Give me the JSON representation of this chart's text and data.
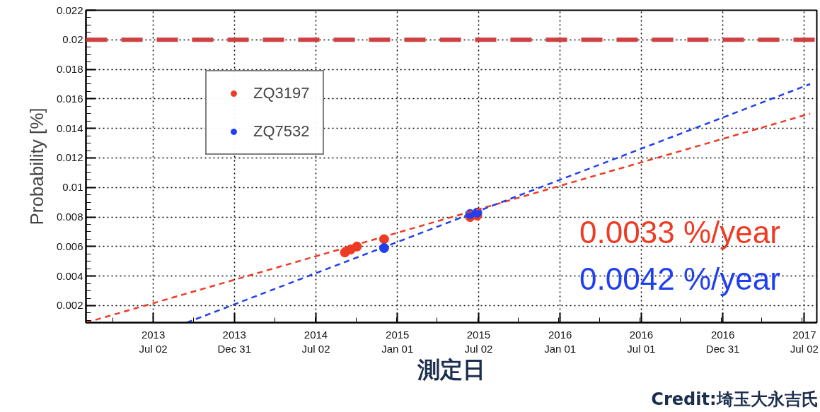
{
  "chart_data": {
    "type": "scatter",
    "xlabel": "測定日",
    "ylabel": "Probability [%]",
    "series": [
      {
        "name": "ZQ3197",
        "color": "#ee3b24",
        "marker": "circle",
        "x": [
          "2014-09-05",
          "2014-09-18",
          "2014-10-02",
          "2014-12-02",
          "2015-06-13",
          "2015-06-29"
        ],
        "values": [
          0.0056,
          0.0058,
          0.006,
          0.0065,
          0.008,
          0.0081
        ]
      },
      {
        "name": "ZQ7532",
        "color": "#2040f0",
        "marker": "circle",
        "x": [
          "2014-12-02",
          "2015-06-13",
          "2015-06-29"
        ],
        "values": [
          0.0059,
          0.0082,
          0.0083
        ]
      },
      {
        "color": "#ee3b24",
        "type": "line",
        "line_style": "dashed",
        "x": [
          "2013-02-01",
          "2017-07-15"
        ],
        "values": [
          0.00085,
          0.015
        ]
      },
      {
        "color": "#2040f0",
        "type": "line",
        "line_style": "dashed",
        "x": [
          "2013-09-15",
          "2017-07-15"
        ],
        "values": [
          0.00085,
          0.017
        ]
      }
    ],
    "xlim": [
      "2013-02-01",
      "2017-07-30"
    ],
    "xticks": [
      {
        "value": "2013-07-02",
        "label": "2013\nJul 02"
      },
      {
        "value": "2013-12-31",
        "label": "2013\nDec 31"
      },
      {
        "value": "2014-07-02",
        "label": "2014\nJul 02"
      },
      {
        "value": "2015-01-01",
        "label": "2015\nJan 01"
      },
      {
        "value": "2015-07-02",
        "label": "2015\nJul 02"
      },
      {
        "value": "2016-01-01",
        "label": "2016\nJan 01"
      },
      {
        "value": "2016-07-01",
        "label": "2016\nJul 01"
      },
      {
        "value": "2016-12-31",
        "label": "2016\nDec 31"
      },
      {
        "value": "2017-07-02",
        "label": "2017\nJul 02"
      }
    ],
    "ylim": [
      0.00085,
      0.022
    ],
    "yticks": [
      {
        "value": 0.002,
        "label": "0.002"
      },
      {
        "value": 0.004,
        "label": "0.004"
      },
      {
        "value": 0.006,
        "label": "0.006"
      },
      {
        "value": 0.008,
        "label": "0.008"
      },
      {
        "value": 0.01,
        "label": "0.01"
      },
      {
        "value": 0.012,
        "label": "0.012"
      },
      {
        "value": 0.014,
        "label": "0.014"
      },
      {
        "value": 0.016,
        "label": "0.016"
      },
      {
        "value": 0.018,
        "label": "0.018"
      },
      {
        "value": 0.02,
        "label": "0.02"
      },
      {
        "value": 0.022,
        "label": "0.022"
      }
    ],
    "ref_lines": [
      {
        "axis": "y",
        "value": 0.02,
        "color": "#d04040",
        "line_style": "dashed"
      }
    ],
    "annotations": [
      "0.0033 %/year",
      "0.0042 %/year",
      "Credit:埼玉大永吉氏"
    ],
    "grid": true,
    "legend": "top left"
  }
}
